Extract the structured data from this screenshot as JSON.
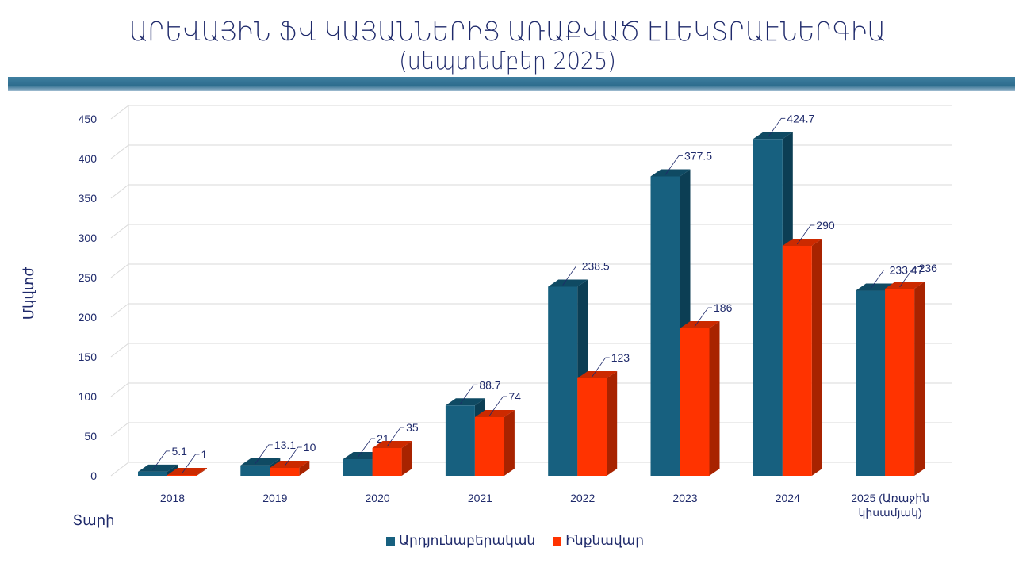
{
  "chart_data": {
    "type": "bar",
    "title": "ԱՐԵՎԱՅԻՆ ՖՎ ԿԱՅԱՆՆԵՐԻՑ ԱՌԱՔՎԱԾ ԷԼԵԿՏՐԱԷՆԵՐԳԻԱ",
    "subtitle": "(սեպտեմբեր 2025)",
    "xlabel": "Տարի",
    "ylabel": "Մկվտժ",
    "ylim": [
      0,
      450
    ],
    "yticks": [
      0,
      50,
      100,
      150,
      200,
      250,
      300,
      350,
      400,
      450
    ],
    "grid": true,
    "legend_position": "bottom",
    "categories": [
      "2018",
      "2019",
      "2020",
      "2021",
      "2022",
      "2023",
      "2024",
      "2025 (Առաջին|կիսամյակ)"
    ],
    "series": [
      {
        "name": "Արդյունաբերական",
        "color": "#17607f",
        "values": [
          5.1,
          13.1,
          21,
          88.7,
          238.5,
          377.5,
          424.7,
          233.47
        ]
      },
      {
        "name": "Ինքնավար",
        "color": "#ff3300",
        "values": [
          1,
          10,
          35,
          74,
          123,
          186,
          290,
          236
        ]
      }
    ]
  }
}
